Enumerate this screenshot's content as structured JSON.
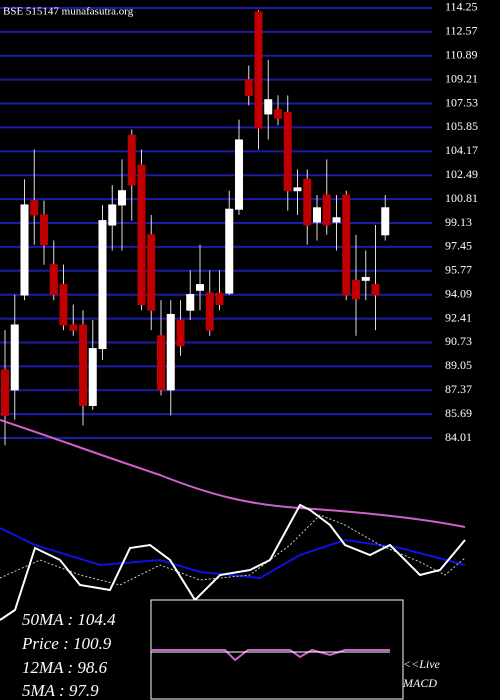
{
  "chart_data": {
    "type": "candlestick",
    "title": "BSE 515147 munafasutra.org",
    "open": [
      88.8,
      87.4,
      94.07,
      100.7,
      99.7,
      96.2,
      94.8,
      91.96,
      91.96,
      86.3,
      90.3,
      98.99,
      100.4,
      105.3,
      103.2,
      98.3,
      91.2,
      87.4,
      92.3,
      93.0,
      94.4,
      94.2,
      94.2,
      94.2,
      100.1,
      109.2,
      113.97,
      106.8,
      107.1,
      106.9,
      101.4,
      102.2,
      99.2,
      101.1,
      99.2,
      101.1,
      95.1,
      95.1,
      94.8,
      98.3
    ],
    "high": [
      91.6,
      94.1,
      102.2,
      104.3,
      100.7,
      97.9,
      96.2,
      93.4,
      93.0,
      92.3,
      100.4,
      101.8,
      103.6,
      105.7,
      104.3,
      99.7,
      93.7,
      93.7,
      93.7,
      95.8,
      97.6,
      95.8,
      95.8,
      101.4,
      106.4,
      110.2,
      114.1,
      110.6,
      108.1,
      108.1,
      102.9,
      102.9,
      101.1,
      103.6,
      101.1,
      101.4,
      98.3,
      97.2,
      98.99,
      101.1
    ],
    "low": [
      83.5,
      85.3,
      93.7,
      97.6,
      96.2,
      93.7,
      91.6,
      91.2,
      84.9,
      86.0,
      89.5,
      97.2,
      97.2,
      99.3,
      93.0,
      91.6,
      87.0,
      85.6,
      89.8,
      92.3,
      93.0,
      91.2,
      93.0,
      94.07,
      99.7,
      107.4,
      104.3,
      105.0,
      106.0,
      100.0,
      99.7,
      97.6,
      97.9,
      98.3,
      97.2,
      93.7,
      91.2,
      93.7,
      91.6,
      97.9
    ],
    "close": [
      85.6,
      91.96,
      100.4,
      99.7,
      97.6,
      94.1,
      91.96,
      91.6,
      86.3,
      90.3,
      99.3,
      100.4,
      101.4,
      101.8,
      93.4,
      93.0,
      87.4,
      92.7,
      90.5,
      94.1,
      94.8,
      91.6,
      93.4,
      100.1,
      104.97,
      108.1,
      105.8,
      107.8,
      106.5,
      101.4,
      101.6,
      99.0,
      100.2,
      99.0,
      99.5,
      94.07,
      93.8,
      95.3,
      94.07,
      100.2
    ],
    "up_color": "#ffffff",
    "down_color": "#c00000",
    "grid_color": "#1c1ca8",
    "grid": true,
    "ylim": [
      83.17,
      114.81
    ],
    "yticks": [
      114.25,
      112.57,
      110.89,
      109.21,
      107.53,
      105.85,
      104.17,
      102.49,
      100.81,
      99.13,
      97.45,
      95.77,
      94.09,
      92.41,
      90.73,
      89.05,
      87.37,
      85.69,
      84.01
    ],
    "annotations": [
      "50MA : 104.4",
      "Price : 100.9",
      "12MA : 98.6",
      "5MA : 97.9"
    ],
    "macd_label": [
      "<<Live",
      "MACD"
    ]
  }
}
